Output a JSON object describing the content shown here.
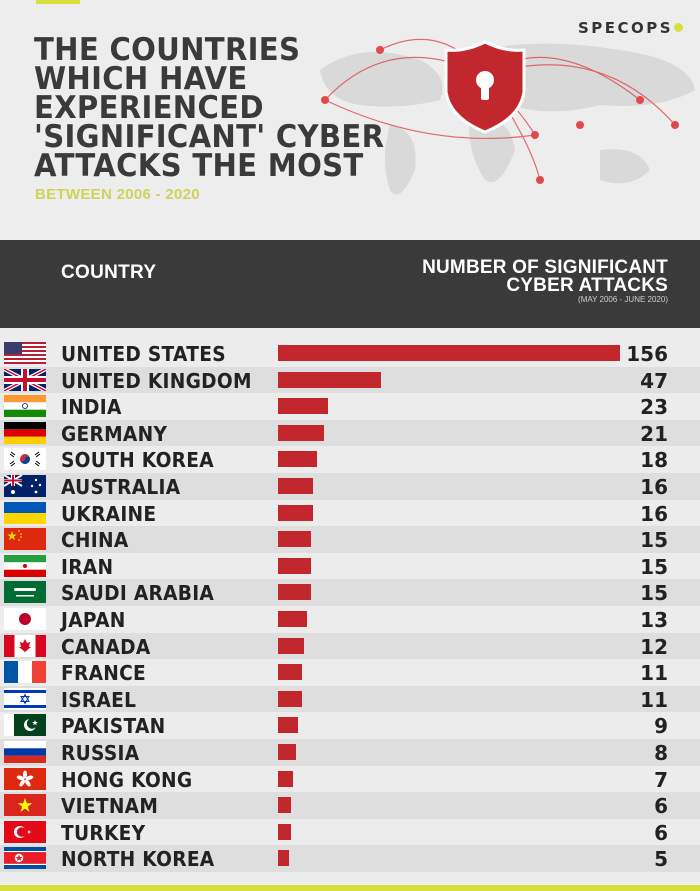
{
  "header": {
    "title": "THE COUNTRIES\nWHICH HAVE\nEXPERIENCED\n'SIGNIFICANT' CYBER\nATTACKS THE MOST",
    "subtitle": "BETWEEN 2006 - 2020",
    "brand": "SPECOPS",
    "accent_color": "#d6df3d",
    "shield_color": "#c1272d"
  },
  "table": {
    "col_country": "COUNTRY",
    "col_attacks_line1": "NUMBER OF SIGNIFICANT",
    "col_attacks_line2": "CYBER ATTACKS",
    "col_attacks_note": "(MAY 2006 - JUNE 2020)"
  },
  "chart_data": {
    "type": "bar",
    "orientation": "horizontal",
    "bar_color": "#c1272d",
    "categories": [
      "UNITED STATES",
      "UNITED KINGDOM",
      "INDIA",
      "GERMANY",
      "SOUTH KOREA",
      "AUSTRALIA",
      "UKRAINE",
      "CHINA",
      "IRAN",
      "SAUDI ARABIA",
      "JAPAN",
      "CANADA",
      "FRANCE",
      "ISRAEL",
      "PAKISTAN",
      "RUSSIA",
      "HONG KONG",
      "VIETNAM",
      "TURKEY",
      "NORTH KOREA"
    ],
    "flags": [
      "us-flag",
      "uk-flag",
      "india-flag",
      "germany-flag",
      "south-korea-flag",
      "australia-flag",
      "ukraine-flag",
      "china-flag",
      "iran-flag",
      "saudi-arabia-flag",
      "japan-flag",
      "canada-flag",
      "france-flag",
      "israel-flag",
      "pakistan-flag",
      "russia-flag",
      "hong-kong-flag",
      "vietnam-flag",
      "turkey-flag",
      "north-korea-flag"
    ],
    "values": [
      156,
      47,
      23,
      21,
      18,
      16,
      16,
      15,
      15,
      15,
      13,
      12,
      11,
      11,
      9,
      8,
      7,
      6,
      6,
      5
    ]
  }
}
